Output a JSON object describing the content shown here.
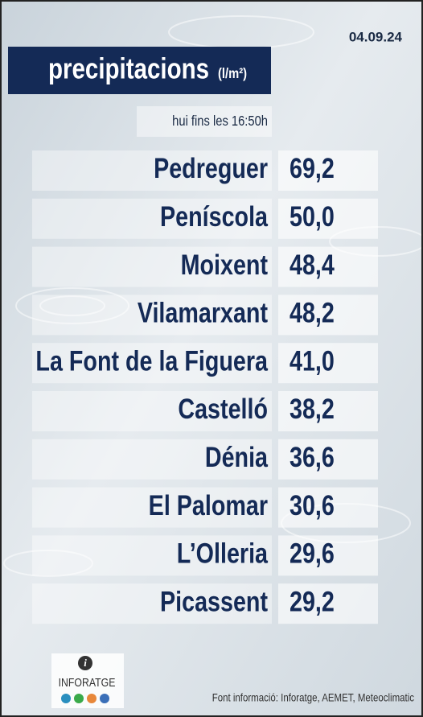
{
  "date": "04.09.24",
  "header": {
    "title": "precipitacions",
    "unit": "(l/m²)",
    "subtitle": "hui fins les 16:50h"
  },
  "table": {
    "rows": [
      [
        "Pedreguer",
        "69,2"
      ],
      [
        "Peníscola",
        "50,0"
      ],
      [
        "Moixent",
        "48,4"
      ],
      [
        "Vilamarxant",
        "48,2"
      ],
      [
        "La Font de la Figuera",
        "41,0"
      ],
      [
        "Castelló",
        "38,2"
      ],
      [
        "Dénia",
        "36,6"
      ],
      [
        "El Palomar",
        "30,6"
      ],
      [
        "L’Olleria",
        "29,6"
      ],
      [
        "Picassent",
        "29,2"
      ]
    ]
  },
  "footer": {
    "logo": "INFORATGE",
    "source": "Font informació: Inforatge, AEMET, Meteoclimatic"
  }
}
